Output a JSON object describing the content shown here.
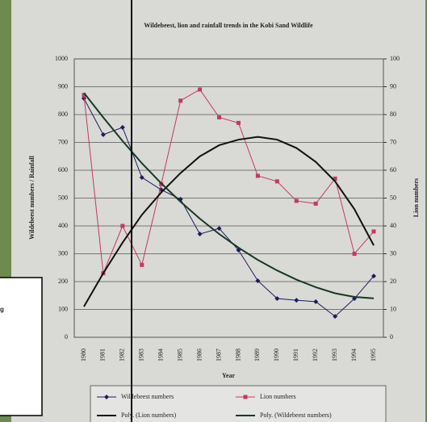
{
  "chart_data": {
    "type": "line",
    "title": "Wildebeest, lion and rainfall trends in the Kobi Sand Wildlife",
    "x_label": "Year",
    "y_label": "Wildebeest numbers / Rainfall",
    "y2_label": "Lion numbers",
    "categories": [
      "1980",
      "1981",
      "1982",
      "1983",
      "1984",
      "1985",
      "1986",
      "1987",
      "1988",
      "1989",
      "1990",
      "1991",
      "1992",
      "1993",
      "1994",
      "1995"
    ],
    "ylim": [
      0,
      1000
    ],
    "yticks": [
      0,
      100,
      200,
      300,
      400,
      500,
      600,
      700,
      800,
      900,
      1000
    ],
    "y2lim": [
      0,
      100
    ],
    "y2ticks": [
      0,
      10,
      20,
      30,
      40,
      50,
      60,
      70,
      80,
      90,
      100
    ],
    "grid": true,
    "series": [
      {
        "name": "Wildebeest numbers",
        "color": "#1c1c5c",
        "marker": "diamond",
        "values": [
          858,
          728,
          754,
          574,
          530,
          496,
          371,
          391,
          313,
          203,
          139,
          133,
          128,
          75,
          139,
          220
        ]
      },
      {
        "name": "Lion numbers",
        "color": "#c23a5e",
        "marker": "square",
        "axis": "y2",
        "values": [
          87,
          23,
          40,
          26,
          55,
          85,
          89,
          79,
          77,
          58,
          56,
          49,
          48,
          57,
          30,
          38
        ]
      },
      {
        "name": "Poly. (Lion numbers)",
        "color": "#111111",
        "axis": "y2",
        "values": [
          11,
          23,
          34,
          44,
          52,
          59,
          65,
          69,
          71,
          72,
          71,
          68,
          63,
          56,
          46,
          33
        ]
      },
      {
        "name": "Poly. (Wildebeest numbers)",
        "color": "#163a22",
        "values": [
          878,
          790,
          705,
          625,
          553,
          487,
          426,
          371,
          322,
          278,
          240,
          207,
          180,
          158,
          145,
          140
        ]
      }
    ]
  },
  "overlay": {
    "text": "g"
  }
}
